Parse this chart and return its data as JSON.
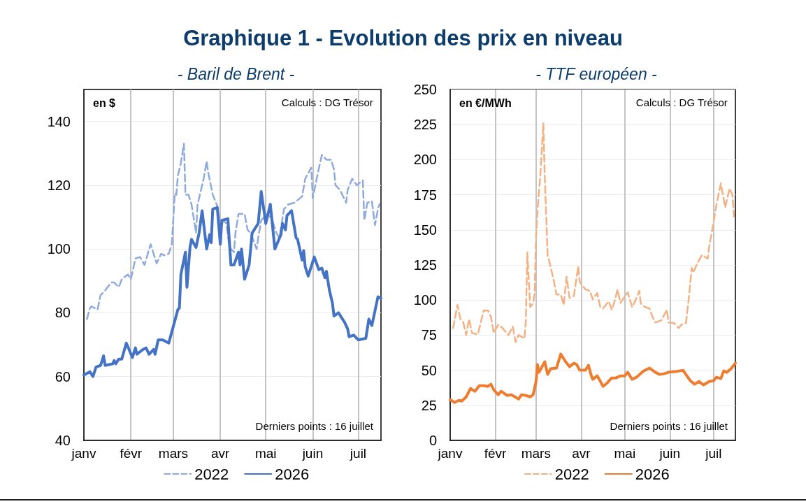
{
  "chart_data": [
    {
      "type": "line",
      "title": "Graphique 1 - Evolution des prix en niveau",
      "subtitle": "- Baril de Brent -",
      "ylabel": "en $",
      "annotations": [
        "Calculs : DG Trésor",
        "Derniers points : 16 juillet"
      ],
      "xlim": [
        "--01-01",
        "--07-16"
      ],
      "xticks": [
        {
          "value": "--01-01",
          "label": "janv"
        },
        {
          "value": "--02-01",
          "label": "févr"
        },
        {
          "value": "--03-01",
          "label": "mars"
        },
        {
          "value": "--04-01",
          "label": "avr"
        },
        {
          "value": "--05-01",
          "label": "mai"
        },
        {
          "value": "--06-01",
          "label": "juin"
        },
        {
          "value": "--07-01",
          "label": "juil"
        }
      ],
      "ylim": [
        40,
        150
      ],
      "yticks": [
        40,
        60,
        80,
        100,
        120,
        140
      ],
      "grid": true,
      "legend": "bottom",
      "marker": "none",
      "series": [
        {
          "name": "2022",
          "color": "#8faadc",
          "line_style": "dashed",
          "x": [
            "--01-03",
            "--01-05",
            "--01-06",
            "--01-10",
            "--01-12",
            "--01-15",
            "--01-19",
            "--01-21",
            "--01-24",
            "--01-26",
            "--01-30",
            "--02-01",
            "--02-04",
            "--02-07",
            "--02-10",
            "--02-14",
            "--02-18",
            "--02-21",
            "--02-23",
            "--02-26",
            "--02-28",
            "--03-02",
            "--03-03",
            "--03-04",
            "--03-06",
            "--03-08",
            "--03-09",
            "--03-11",
            "--03-13",
            "--03-16",
            "--03-17",
            "--03-21",
            "--03-23",
            "--03-24",
            "--03-27",
            "--03-30",
            "--04-01",
            "--04-03",
            "--04-05",
            "--04-07",
            "--04-10",
            "--04-11",
            "--04-13",
            "--04-17",
            "--04-19",
            "--04-21",
            "--04-25",
            "--04-26",
            "--04-28",
            "--05-02",
            "--05-05",
            "--05-08",
            "--05-10",
            "--05-13",
            "--05-16",
            "--05-20",
            "--05-25",
            "--05-27",
            "--05-31",
            "--06-01",
            "--06-04",
            "--06-07",
            "--06-10",
            "--06-13",
            "--06-15",
            "--06-16",
            "--06-19",
            "--06-23",
            "--06-24",
            "--06-27",
            "--06-30",
            "--07-04",
            "--07-05",
            "--07-07",
            "--07-10",
            "--07-12",
            "--07-14",
            "--07-15"
          ],
          "values": [
            78,
            81.5,
            82,
            81,
            85.5,
            87,
            89.5,
            89.5,
            88,
            90.5,
            92,
            90.5,
            97,
            97.5,
            95,
            101.5,
            95.5,
            98.5,
            98,
            98.5,
            101.5,
            117.5,
            117,
            123,
            127,
            133,
            117,
            117,
            114,
            105,
            114,
            122,
            127.5,
            124,
            117,
            113.5,
            106.5,
            109,
            108,
            100.5,
            99,
            105,
            111,
            111,
            106,
            105,
            100,
            103.5,
            109,
            111,
            109.5,
            105,
            103.5,
            112.5,
            114,
            114.5,
            116.5,
            122,
            125.5,
            116,
            123,
            129.5,
            128,
            128,
            125,
            120,
            118.5,
            114.5,
            118.5,
            122,
            120,
            121.5,
            109,
            114.5,
            115,
            107.5,
            112.5,
            114
          ]
        },
        {
          "name": "2026",
          "color": "#4472c4",
          "line_style": "solid",
          "x": [
            "--01-01",
            "--01-05",
            "--01-07",
            "--01-09",
            "--01-12",
            "--01-14",
            "--01-15",
            "--01-20",
            "--01-21",
            "--01-22",
            "--01-24",
            "--01-26",
            "--01-29",
            "--02-02",
            "--02-04",
            "--02-05",
            "--02-09",
            "--02-11",
            "--02-13",
            "--02-16",
            "--02-17",
            "--02-19",
            "--02-22",
            "--02-24",
            "--02-26",
            "--03-02",
            "--03-04",
            "--03-05",
            "--03-06",
            "--03-09",
            "--03-10",
            "--03-12",
            "--03-13",
            "--03-16",
            "--03-18",
            "--03-20",
            "--03-23",
            "--03-25",
            "--03-26",
            "--03-27",
            "--03-30",
            "--04-01",
            "--04-02",
            "--04-06",
            "--04-08",
            "--04-10",
            "--04-13",
            "--04-14",
            "--04-15",
            "--04-17",
            "--04-20",
            "--04-22",
            "--04-26",
            "--04-28",
            "--05-01",
            "--05-04",
            "--05-07",
            "--05-11",
            "--05-12",
            "--05-14",
            "--05-15",
            "--05-18",
            "--05-21",
            "--05-22",
            "--05-25",
            "--05-26",
            "--05-27",
            "--05-29",
            "--06-02",
            "--06-05",
            "--06-07",
            "--06-09",
            "--06-10",
            "--06-12",
            "--06-14",
            "--06-15",
            "--06-18",
            "--06-22",
            "--06-24",
            "--06-25",
            "--06-28",
            "--07-01",
            "--07-06",
            "--07-08",
            "--07-10",
            "--07-14",
            "--07-16"
          ],
          "values": [
            60.5,
            61.5,
            60,
            63,
            63.5,
            66.5,
            63.5,
            64,
            65,
            64,
            65.5,
            65.5,
            70.5,
            66,
            69,
            67,
            68.5,
            69,
            67,
            68.5,
            67,
            71.5,
            71.5,
            71,
            70.5,
            77.5,
            81,
            81.5,
            92,
            99,
            88,
            100.5,
            103,
            100.5,
            105,
            112,
            100,
            104.5,
            102,
            112.5,
            113,
            101.5,
            109,
            109.5,
            95,
            95,
            99,
            95,
            100,
            90.5,
            95,
            105,
            108,
            118,
            108,
            114,
            100,
            104.5,
            108,
            106,
            110.5,
            112,
            103.5,
            103,
            96.5,
            99.5,
            94.5,
            91.5,
            97.5,
            93.5,
            94,
            91,
            93,
            87,
            83,
            79,
            80,
            77,
            75,
            72.5,
            73,
            71.5,
            72,
            78,
            76,
            85,
            84.5
          ]
        }
      ]
    },
    {
      "type": "line",
      "subtitle": "- TTF européen -",
      "ylabel": "en €/MWh",
      "annotations": [
        "Calculs : DG Trésor",
        "Derniers points : 16 juillet"
      ],
      "xlim": [
        "--01-01",
        "--07-16"
      ],
      "xticks": [
        {
          "value": "--01-01",
          "label": "janv"
        },
        {
          "value": "--02-01",
          "label": "févr"
        },
        {
          "value": "--03-01",
          "label": "mars"
        },
        {
          "value": "--04-01",
          "label": "avr"
        },
        {
          "value": "--05-01",
          "label": "mai"
        },
        {
          "value": "--06-01",
          "label": "juin"
        },
        {
          "value": "--07-01",
          "label": "juil"
        }
      ],
      "ylim": [
        0,
        250
      ],
      "yticks": [
        0,
        25,
        50,
        75,
        100,
        125,
        150,
        175,
        200,
        225,
        250
      ],
      "grid": true,
      "legend": "bottom",
      "marker": "none",
      "series": [
        {
          "name": "2022",
          "color": "#f4b183",
          "line_style": "dashed",
          "x": [
            "--01-03",
            "--01-06",
            "--01-08",
            "--01-10",
            "--01-12",
            "--01-14",
            "--01-16",
            "--01-20",
            "--01-24",
            "--01-27",
            "--01-29",
            "--01-31",
            "--02-03",
            "--02-06",
            "--02-10",
            "--02-13",
            "--02-15",
            "--02-17",
            "--02-21",
            "--02-22",
            "--02-23",
            "--02-25",
            "--02-27",
            "--02-28",
            "--03-01",
            "--03-02",
            "--03-04",
            "--03-06",
            "--03-07",
            "--03-09",
            "--03-10",
            "--03-13",
            "--03-15",
            "--03-18",
            "--03-20",
            "--03-22",
            "--03-24",
            "--03-27",
            "--03-30",
            "--03-31",
            "--04-04",
            "--04-07",
            "--04-09",
            "--04-12",
            "--04-14",
            "--04-16",
            "--04-20",
            "--04-22",
            "--04-24",
            "--04-26",
            "--04-28",
            "--05-01",
            "--05-03",
            "--05-06",
            "--05-08",
            "--05-11",
            "--05-12",
            "--05-15",
            "--05-18",
            "--05-20",
            "--05-22",
            "--05-26",
            "--05-30",
            "--05-31",
            "--06-04",
            "--06-07",
            "--06-09",
            "--06-12",
            "--06-14",
            "--06-16",
            "--06-17",
            "--06-20",
            "--06-23",
            "--06-27",
            "--06-28",
            "--06-30",
            "--07-03",
            "--07-06",
            "--07-09",
            "--07-12",
            "--07-14",
            "--07-15"
          ],
          "values": [
            80,
            96.5,
            86.5,
            84,
            75,
            86.5,
            76.5,
            75.5,
            92.5,
            92.5,
            88,
            76.5,
            82.5,
            80,
            75,
            81,
            70,
            75,
            72.5,
            85,
            134,
            95,
            97.5,
            105,
            144.5,
            163.5,
            189.5,
            226,
            187.5,
            131.5,
            128,
            115,
            104,
            104,
            96.5,
            116.5,
            101.5,
            103,
            124,
            113,
            107.5,
            106.5,
            100.5,
            105,
            95.5,
            94,
            99,
            93,
            99,
            107.5,
            98,
            102.5,
            105.5,
            95,
            99,
            106.5,
            97.5,
            95,
            94,
            88,
            84,
            85.5,
            93,
            84,
            83.5,
            80,
            82.5,
            83.5,
            101.5,
            123,
            119.5,
            126.5,
            132,
            129.5,
            138,
            149.5,
            168,
            183,
            166,
            179.5,
            174.5,
            159.5
          ]
        },
        {
          "name": "2026",
          "color": "#ed7d31",
          "line_style": "solid",
          "x": [
            "--01-01",
            "--01-04",
            "--01-07",
            "--01-09",
            "--01-12",
            "--01-15",
            "--01-18",
            "--01-21",
            "--01-24",
            "--01-27",
            "--01-29",
            "--01-31",
            "--02-03",
            "--02-05",
            "--02-09",
            "--02-12",
            "--02-17",
            "--02-19",
            "--02-22",
            "--02-25",
            "--02-27",
            "--03-01",
            "--03-02",
            "--03-03",
            "--03-07",
            "--03-09",
            "--03-11",
            "--03-15",
            "--03-18",
            "--03-21",
            "--03-24",
            "--03-27",
            "--03-29",
            "--03-31",
            "--04-04",
            "--04-06",
            "--04-08",
            "--04-09",
            "--04-12",
            "--04-14",
            "--04-16",
            "--04-19",
            "--04-22",
            "--04-25",
            "--04-28",
            "--05-01",
            "--05-03",
            "--05-06",
            "--05-09",
            "--05-14",
            "--05-18",
            "--05-22",
            "--05-25",
            "--05-28",
            "--05-31",
            "--06-05",
            "--06-10",
            "--06-12",
            "--06-15",
            "--06-18",
            "--06-21",
            "--06-24",
            "--06-28",
            "--07-01",
            "--07-03",
            "--07-06",
            "--07-08",
            "--07-10",
            "--07-13",
            "--07-16"
          ],
          "values": [
            29,
            27,
            28.5,
            28,
            31,
            37,
            35,
            39,
            39,
            38.5,
            40,
            36,
            32.5,
            35,
            32,
            32.5,
            29.5,
            32.5,
            32,
            31,
            32.5,
            42,
            54,
            48.5,
            56,
            47,
            51,
            51.5,
            61.5,
            56.5,
            52.5,
            55,
            54,
            50,
            50,
            53.5,
            46,
            43.5,
            46,
            42.5,
            38.5,
            41,
            44.5,
            44.5,
            46,
            46,
            48.5,
            43.5,
            45,
            49.5,
            51.5,
            48.5,
            47,
            47.5,
            48.5,
            49,
            50,
            47,
            42.5,
            40,
            42,
            39.5,
            42,
            42.5,
            45,
            44,
            49.5,
            48.5,
            51,
            55
          ]
        }
      ]
    }
  ]
}
